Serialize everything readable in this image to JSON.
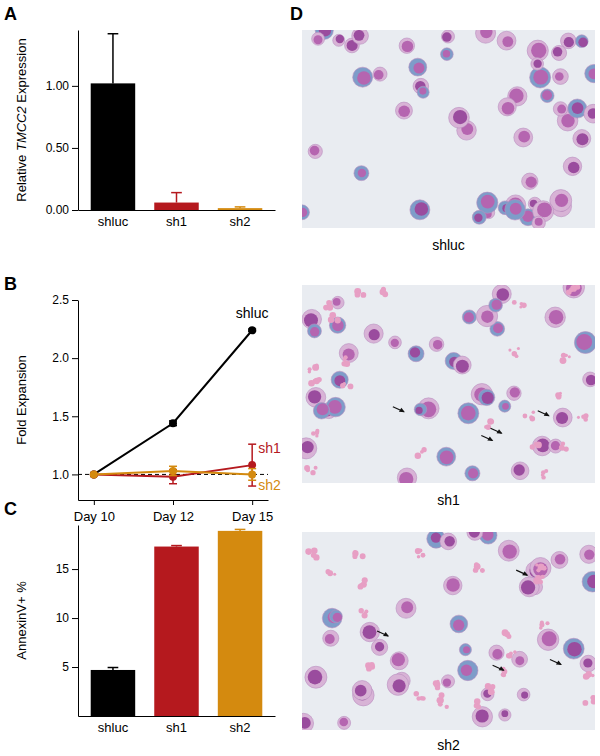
{
  "chart_data": [
    {
      "type": "bar",
      "title": "A",
      "ylabel": "Relative TMCC2 Expression",
      "categories": [
        "shluc",
        "sh1",
        "sh2"
      ],
      "values": [
        1.02,
        0.06,
        0.015
      ],
      "errors": [
        0.4,
        0.08,
        0.01
      ],
      "colors": [
        "#000000",
        "#b5191e",
        "#d48a0f"
      ],
      "ylim": [
        0,
        1.45
      ],
      "yticks": [
        {
          "value": 0,
          "label": "0.00"
        },
        {
          "value": 0.5,
          "label": "0.50"
        },
        {
          "value": 1,
          "label": "1.00"
        }
      ]
    },
    {
      "type": "line",
      "title": "B",
      "ylabel": "Fold Expansion",
      "categories": [
        "Day 10",
        "Day 12",
        "Day 15"
      ],
      "series": [
        {
          "name": "shluc",
          "color": "#000000",
          "values": [
            1,
            1.44,
            2.24
          ],
          "errors": [
            0,
            0.02,
            0.01
          ]
        },
        {
          "name": "sh1",
          "color": "#b5191e",
          "values": [
            1,
            0.98,
            1.08
          ],
          "errors": [
            0,
            0.06,
            0.18
          ]
        },
        {
          "name": "sh2",
          "color": "#d48a0f",
          "values": [
            1,
            1.03,
            1.0
          ],
          "errors": [
            0,
            0.04,
            0.05
          ]
        }
      ],
      "hline": 1,
      "marker": "circle",
      "ylim": [
        0.78,
        2.5
      ],
      "yticks": [
        {
          "value": 1,
          "label": "1.0"
        },
        {
          "value": 1.5,
          "label": "1.5"
        },
        {
          "value": 2,
          "label": "2.0"
        },
        {
          "value": 2.5,
          "label": "2.5"
        }
      ]
    },
    {
      "type": "bar",
      "title": "C",
      "ylabel": "AnnexinV+ %",
      "categories": [
        "shluc",
        "sh1",
        "sh2"
      ],
      "values": [
        4.7,
        17.3,
        18.9
      ],
      "errors": [
        0.25,
        0.1,
        0.15
      ],
      "colors": [
        "#000000",
        "#b5191e",
        "#d48a0f"
      ],
      "ylim": [
        0,
        19.5
      ],
      "yticks": [
        5,
        10,
        15
      ]
    }
  ],
  "images": {
    "title": "D",
    "captions": [
      "shluc",
      "sh1",
      "sh2"
    ]
  }
}
